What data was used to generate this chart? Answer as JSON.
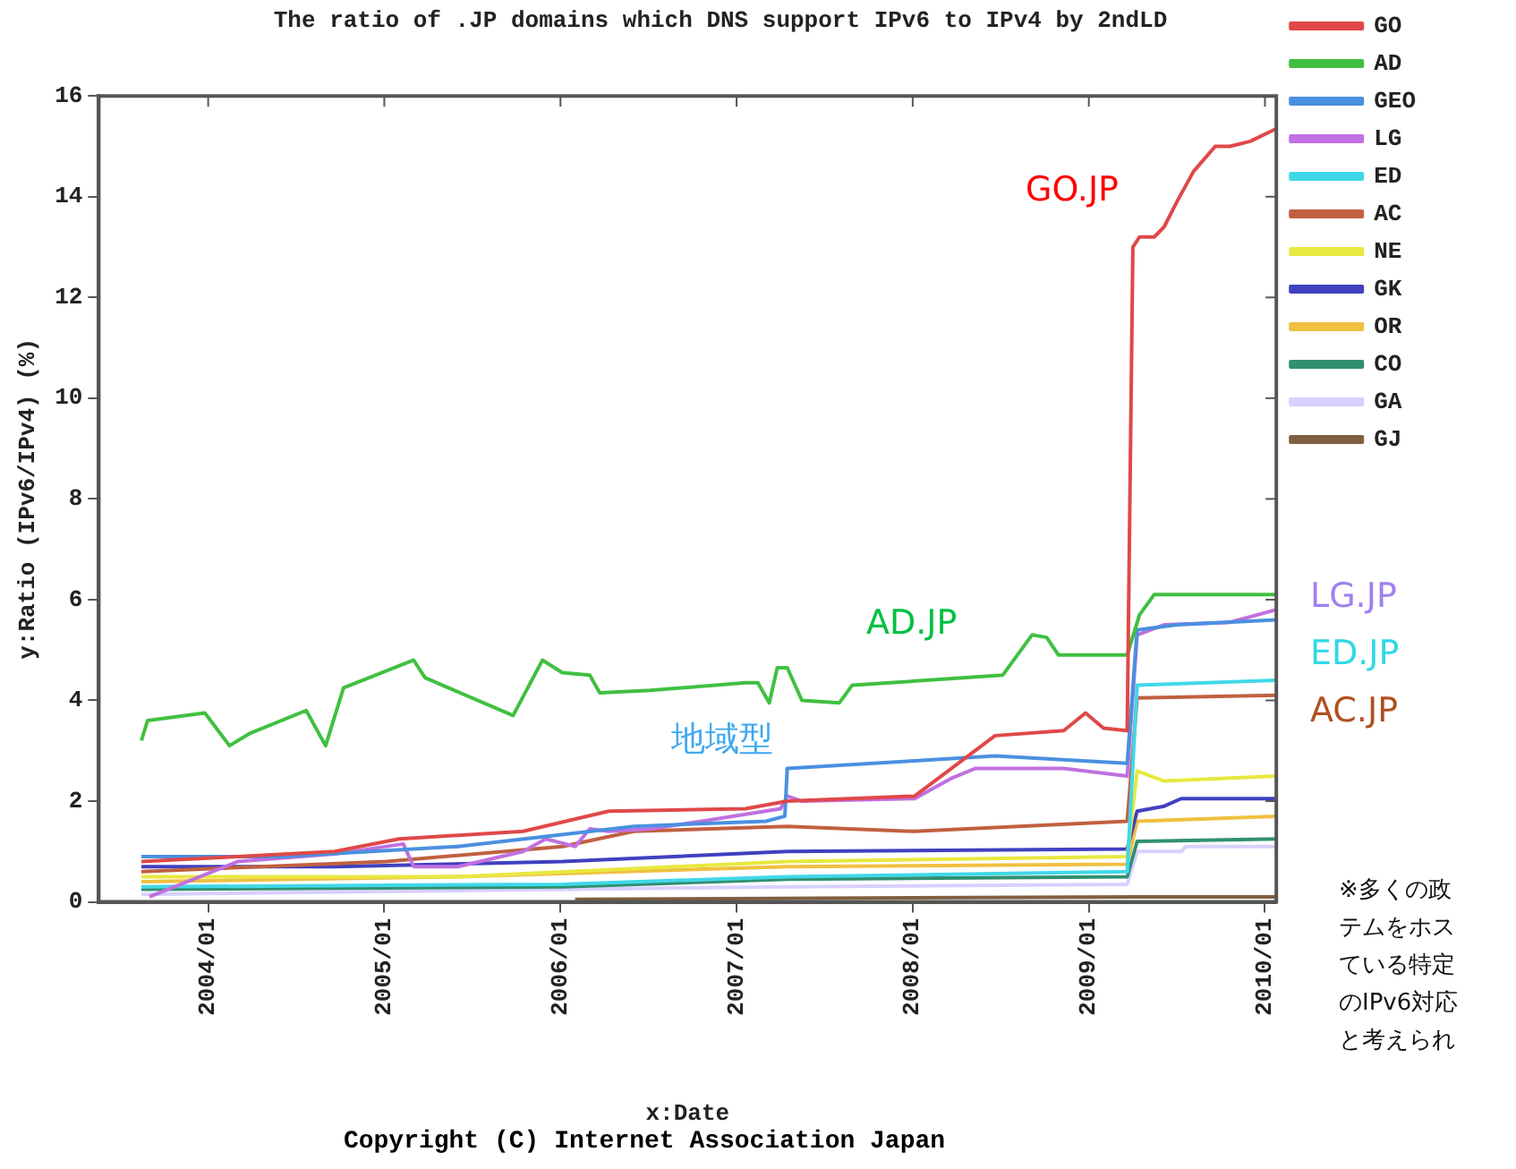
{
  "chart_data": {
    "type": "line",
    "title": "The ratio of .JP domains which DNS support IPv6 to IPv4 by 2ndLD",
    "xlabel": "x:Date",
    "ylabel": "y:Ratio (IPv6/IPv4) (%)",
    "xlim": [
      "2003-05-18",
      "2010-01-25"
    ],
    "xticks": [
      {
        "value": "2004-01",
        "label": "2004/01"
      },
      {
        "value": "2005-01",
        "label": "2005/01"
      },
      {
        "value": "2006-01",
        "label": "2006/01"
      },
      {
        "value": "2007-01",
        "label": "2007/01"
      },
      {
        "value": "2008-01",
        "label": "2008/01"
      },
      {
        "value": "2009-01",
        "label": "2009/01"
      },
      {
        "value": "2010-01",
        "label": "2010/01"
      }
    ],
    "ylim": [
      0,
      16
    ],
    "yticks": [
      0,
      2,
      4,
      6,
      8,
      10,
      12,
      14,
      16
    ],
    "legend": "top right",
    "series": [
      {
        "name": "GO",
        "color": "#e04848",
        "x": [
          "2003-08-15",
          "2004-03-01",
          "2004-09-20",
          "2005-02-01",
          "2005-10-15",
          "2006-04-10",
          "2007-01-20",
          "2007-04-15",
          "2008-01-05",
          "2008-06-20",
          "2008-11-10",
          "2008-12-25",
          "2009-02-01",
          "2009-03-20",
          "2009-04-01",
          "2009-04-15",
          "2009-05-15",
          "2009-06-05",
          "2009-07-01",
          "2009-08-05",
          "2009-09-20",
          "2009-10-20",
          "2009-12-01",
          "2010-01-25"
        ],
        "values": [
          0.8,
          0.9,
          1.0,
          1.25,
          1.4,
          1.8,
          1.85,
          2.0,
          2.1,
          3.3,
          3.4,
          3.75,
          3.45,
          3.4,
          13.0,
          13.2,
          13.2,
          13.4,
          13.9,
          14.5,
          15.0,
          15.0,
          15.1,
          15.35
        ]
      },
      {
        "name": "AD",
        "color": "#40c040",
        "x": [
          "2003-08-15",
          "2003-08-28",
          "2003-12-25",
          "2004-02-15",
          "2004-03-28",
          "2004-07-22",
          "2004-09-01",
          "2004-10-08",
          "2005-03-01",
          "2005-03-25",
          "2005-09-25",
          "2005-11-25",
          "2006-01-05",
          "2006-03-01",
          "2006-03-22",
          "2006-07-05",
          "2007-01-20",
          "2007-02-15",
          "2007-03-08",
          "2007-03-25",
          "2007-04-15",
          "2007-05-15",
          "2007-08-01",
          "2007-08-28",
          "2008-07-05",
          "2008-09-05",
          "2008-10-05",
          "2008-10-30",
          "2009-03-20",
          "2009-04-15",
          "2009-05-15",
          "2010-01-25"
        ],
        "values": [
          3.2,
          3.6,
          3.75,
          3.1,
          3.35,
          3.8,
          3.1,
          4.25,
          4.8,
          4.45,
          3.7,
          4.8,
          4.55,
          4.5,
          4.15,
          4.2,
          4.35,
          4.35,
          3.95,
          4.65,
          4.65,
          4.0,
          3.95,
          4.3,
          4.5,
          5.3,
          5.25,
          4.9,
          4.9,
          5.7,
          6.1,
          6.1
        ]
      },
      {
        "name": "GEO",
        "color": "#4a90e0",
        "x": [
          "2003-08-15",
          "2004-06-01",
          "2005-06-01",
          "2006-06-01",
          "2007-03-01",
          "2007-04-10",
          "2007-04-15",
          "2008-01-05",
          "2008-06-20",
          "2009-03-20",
          "2009-04-10",
          "2009-07-01",
          "2010-01-25"
        ],
        "values": [
          0.9,
          0.9,
          1.1,
          1.5,
          1.6,
          1.7,
          2.65,
          2.8,
          2.9,
          2.75,
          5.4,
          5.5,
          5.6
        ]
      },
      {
        "name": "LG",
        "color": "#c070e0",
        "x": [
          "2003-09-01",
          "2004-03-01",
          "2004-09-20",
          "2005-02-10",
          "2005-03-01",
          "2005-06-01",
          "2005-10-15",
          "2005-12-01",
          "2006-02-01",
          "2006-03-01",
          "2006-04-10",
          "2006-07-05",
          "2006-10-20",
          "2007-04-01",
          "2007-04-15",
          "2007-05-15",
          "2008-01-05",
          "2008-03-20",
          "2008-05-10",
          "2008-11-10",
          "2009-03-20",
          "2009-04-10",
          "2009-06-05",
          "2009-10-20",
          "2010-01-25"
        ],
        "values": [
          0.1,
          0.8,
          0.95,
          1.15,
          0.7,
          0.7,
          1.0,
          1.25,
          1.1,
          1.45,
          1.4,
          1.45,
          1.6,
          1.85,
          2.1,
          2.0,
          2.05,
          2.45,
          2.65,
          2.65,
          2.5,
          5.3,
          5.5,
          5.55,
          5.8
        ]
      },
      {
        "name": "ED",
        "color": "#40d8e8",
        "x": [
          "2003-08-15",
          "2006-01-05",
          "2007-04-15",
          "2009-03-20",
          "2009-04-10",
          "2010-01-25"
        ],
        "values": [
          0.3,
          0.35,
          0.5,
          0.6,
          4.3,
          4.4
        ]
      },
      {
        "name": "AC",
        "color": "#c06040",
        "x": [
          "2003-08-15",
          "2005-01-05",
          "2006-01-05",
          "2006-06-01",
          "2007-04-15",
          "2008-01-05",
          "2009-03-20",
          "2009-04-10",
          "2010-01-25"
        ],
        "values": [
          0.6,
          0.8,
          1.1,
          1.4,
          1.5,
          1.4,
          1.6,
          4.05,
          4.1
        ]
      },
      {
        "name": "NE",
        "color": "#e8e840",
        "x": [
          "2003-08-15",
          "2005-06-01",
          "2007-04-15",
          "2009-03-20",
          "2009-04-10",
          "2009-06-05",
          "2010-01-25"
        ],
        "values": [
          0.5,
          0.5,
          0.8,
          0.9,
          2.6,
          2.4,
          2.5
        ]
      },
      {
        "name": "GK",
        "color": "#4040c0",
        "x": [
          "2003-08-15",
          "2004-09-20",
          "2006-01-05",
          "2007-04-15",
          "2009-03-20",
          "2009-04-10",
          "2009-06-05",
          "2009-07-10",
          "2010-01-25"
        ],
        "values": [
          0.7,
          0.7,
          0.8,
          1.0,
          1.05,
          1.8,
          1.9,
          2.05,
          2.05
        ]
      },
      {
        "name": "OR",
        "color": "#f0c040",
        "x": [
          "2003-08-15",
          "2005-06-01",
          "2007-04-15",
          "2009-03-20",
          "2009-04-10",
          "2010-01-25"
        ],
        "values": [
          0.4,
          0.5,
          0.7,
          0.75,
          1.6,
          1.7
        ]
      },
      {
        "name": "CO",
        "color": "#309070",
        "x": [
          "2003-08-15",
          "2006-01-05",
          "2007-04-15",
          "2009-03-20",
          "2009-04-10",
          "2010-01-25"
        ],
        "values": [
          0.25,
          0.3,
          0.45,
          0.5,
          1.2,
          1.25
        ]
      },
      {
        "name": "GA",
        "color": "#d8d0ff",
        "x": [
          "2003-08-15",
          "2007-04-15",
          "2009-03-20",
          "2009-04-10",
          "2009-07-10",
          "2009-07-20",
          "2010-01-25"
        ],
        "values": [
          0.15,
          0.3,
          0.35,
          1.0,
          1.0,
          1.1,
          1.1
        ]
      },
      {
        "name": "GJ",
        "color": "#806040",
        "x": [
          "2006-02-01",
          "2009-04-10",
          "2010-01-25"
        ],
        "values": [
          0.05,
          0.1,
          0.1
        ]
      }
    ],
    "annotations": [
      "GO.JP",
      "AD.JP",
      "地域型",
      "LG.JP",
      "ED.JP",
      "AC.JP",
      "※多くの政テムをホスている特定のIPv6対応と考えられ",
      "Copyright (C) Internet Association Japan"
    ]
  }
}
